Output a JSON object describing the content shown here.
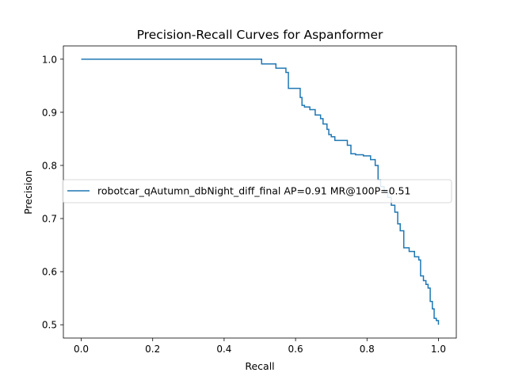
{
  "chart_data": {
    "type": "line",
    "title": "Precision-Recall Curves for Aspanformer",
    "xlabel": "Recall",
    "ylabel": "Precision",
    "xlim": [
      -0.05,
      1.05
    ],
    "ylim": [
      0.475,
      1.025
    ],
    "xticks": [
      {
        "value": 0.0,
        "label": "0.0"
      },
      {
        "value": 0.2,
        "label": "0.2"
      },
      {
        "value": 0.4,
        "label": "0.4"
      },
      {
        "value": 0.6,
        "label": "0.6"
      },
      {
        "value": 0.8,
        "label": "0.8"
      },
      {
        "value": 1.0,
        "label": "1.0"
      }
    ],
    "yticks": [
      {
        "value": 0.5,
        "label": "0.5"
      },
      {
        "value": 0.6,
        "label": "0.6"
      },
      {
        "value": 0.7,
        "label": "0.7"
      },
      {
        "value": 0.8,
        "label": "0.8"
      },
      {
        "value": 0.9,
        "label": "0.9"
      },
      {
        "value": 1.0,
        "label": "1.0"
      }
    ],
    "grid": false,
    "legend_placement": "center-right",
    "series": [
      {
        "name": "robotcar_qAutumn_dbNight_diff_final AP=0.91 MR@100P=0.51",
        "color": "#1f77b4",
        "x": [
          0.0,
          0.505,
          0.505,
          0.545,
          0.545,
          0.573,
          0.573,
          0.58,
          0.58,
          0.613,
          0.613,
          0.618,
          0.618,
          0.625,
          0.625,
          0.64,
          0.64,
          0.655,
          0.655,
          0.67,
          0.67,
          0.677,
          0.677,
          0.688,
          0.688,
          0.693,
          0.693,
          0.7,
          0.7,
          0.71,
          0.71,
          0.745,
          0.745,
          0.755,
          0.755,
          0.768,
          0.768,
          0.79,
          0.79,
          0.81,
          0.81,
          0.823,
          0.823,
          0.831,
          0.831,
          0.838,
          0.838,
          0.848,
          0.848,
          0.858,
          0.858,
          0.868,
          0.868,
          0.878,
          0.878,
          0.886,
          0.886,
          0.893,
          0.893,
          0.903,
          0.903,
          0.918,
          0.918,
          0.933,
          0.933,
          0.945,
          0.945,
          0.95,
          0.95,
          0.958,
          0.958,
          0.965,
          0.965,
          0.971,
          0.971,
          0.977,
          0.977,
          0.983,
          0.983,
          0.988,
          0.988,
          0.994,
          0.994,
          1.0,
          1.0
        ],
        "y": [
          1.0,
          1.0,
          0.991,
          0.991,
          0.983,
          0.983,
          0.975,
          0.975,
          0.945,
          0.945,
          0.928,
          0.928,
          0.913,
          0.913,
          0.91,
          0.91,
          0.905,
          0.905,
          0.895,
          0.895,
          0.888,
          0.888,
          0.878,
          0.878,
          0.868,
          0.868,
          0.858,
          0.858,
          0.854,
          0.854,
          0.847,
          0.847,
          0.838,
          0.838,
          0.822,
          0.822,
          0.82,
          0.82,
          0.818,
          0.818,
          0.811,
          0.811,
          0.8,
          0.8,
          0.773,
          0.773,
          0.76,
          0.76,
          0.75,
          0.75,
          0.74,
          0.74,
          0.725,
          0.725,
          0.712,
          0.712,
          0.69,
          0.69,
          0.677,
          0.677,
          0.645,
          0.645,
          0.638,
          0.638,
          0.628,
          0.628,
          0.622,
          0.622,
          0.592,
          0.592,
          0.583,
          0.583,
          0.576,
          0.576,
          0.569,
          0.569,
          0.544,
          0.544,
          0.53,
          0.53,
          0.512,
          0.512,
          0.508,
          0.508,
          0.5
        ]
      }
    ]
  }
}
